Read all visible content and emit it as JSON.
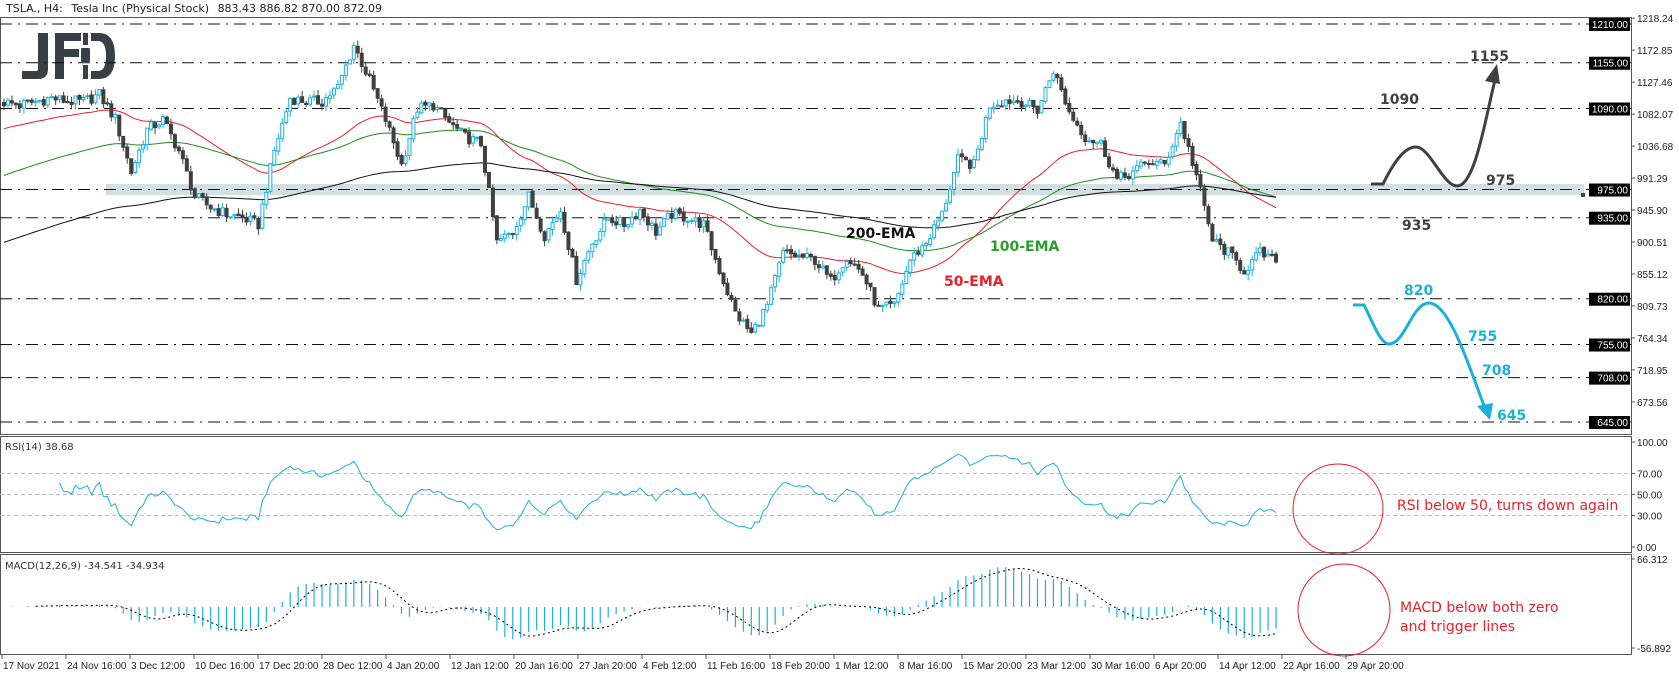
{
  "header": {
    "symbol": "TSLA., H4:",
    "name": "Tesla Inc (Physical Stock)",
    "ohlc": "883.43 886.82 870.00 872.09"
  },
  "logo": "JFD",
  "colors": {
    "bull": "#1ab0dc",
    "bear": "#404040",
    "ema50": "#e8202a",
    "ema100": "#1e8c1e",
    "ema200": "#111111",
    "zone": "#d3e0e3",
    "bullish_scenario": "#404040",
    "bearish_scenario": "#1ab0dc",
    "annotation": "#e8202a"
  },
  "chart_data": [
    {
      "type": "candlestick",
      "title": "TSLA., H4: Tesla Inc (Physical Stock)",
      "x_tick_labels": [
        "17 Nov 2021",
        "24 Nov 16:00",
        "3 Dec 12:00",
        "10 Dec 16:00",
        "17 Dec 20:00",
        "28 Dec 12:00",
        "4 Jan 20:00",
        "12 Jan 12:00",
        "20 Jan 16:00",
        "27 Jan 20:00",
        "4 Feb 12:00",
        "11 Feb 16:00",
        "18 Feb 20:00",
        "1 Mar 12:00",
        "8 Mar 16:00",
        "15 Mar 20:00",
        "23 Mar 12:00",
        "30 Mar 16:00",
        "6 Apr 20:00",
        "14 Apr 12:00",
        "22 Apr 16:00",
        "29 Apr 20:00"
      ],
      "close_samples_every_4_bars": [
        1099,
        1095,
        1100,
        1105,
        1100,
        1100,
        1110,
        1075,
        1000,
        1060,
        1074,
        1030,
        965,
        950,
        940,
        935,
        925,
        1030,
        1105,
        1100,
        1100,
        1120,
        1180,
        1130,
        1074,
        1010,
        1090,
        1095,
        1070,
        1050,
        1040,
        900,
        915,
        965,
        910,
        946,
        847,
        900,
        935,
        925,
        946,
        915,
        940,
        935,
        925,
        860,
        800,
        770,
        810,
        885,
        880,
        875,
        845,
        880,
        855,
        805,
        810,
        875,
        900,
        940,
        1017,
        1010,
        1095,
        1102,
        1100,
        1088,
        1145,
        1085,
        1050,
        1040,
        989,
        1000,
        1015,
        1010,
        1070,
        995,
        903,
        885,
        860,
        885,
        872.09
      ],
      "last_bar": {
        "open": 883.43,
        "high": 886.82,
        "low": 870.0,
        "close": 872.09
      },
      "ylim": [
        645,
        1218.24
      ],
      "y_tick_labels": [
        "1218.24",
        "1172.85",
        "1127.46",
        "1082.07",
        "1036.68",
        "991.29",
        "945.90",
        "900.51",
        "855.12",
        "809.73",
        "764.34",
        "718.95",
        "673.56"
      ],
      "levels": [
        {
          "value": 1210,
          "label": "1210.00"
        },
        {
          "value": 1155,
          "label": "1155.00"
        },
        {
          "value": 1090,
          "label": "1090.00"
        },
        {
          "value": 975,
          "label": "975.00"
        },
        {
          "value": 935,
          "label": "935.00"
        },
        {
          "value": 820,
          "label": "820.00"
        },
        {
          "value": 755,
          "label": "755.00"
        },
        {
          "value": 708,
          "label": "708.00"
        },
        {
          "value": 645,
          "label": "645.00"
        }
      ],
      "support_zone": {
        "from": 967,
        "to": 983
      },
      "emas": [
        {
          "name": "50-EMA",
          "period": 50
        },
        {
          "name": "100-EMA",
          "period": 100
        },
        {
          "name": "200-EMA",
          "period": 200
        }
      ],
      "scenario_labels": {
        "bullish": [
          "1155",
          "1090",
          "975",
          "935"
        ],
        "bearish": [
          "820",
          "755",
          "708",
          "645"
        ]
      },
      "bullish_path": [
        975,
        1030,
        975,
        1155
      ],
      "bearish_path": [
        820,
        755,
        820,
        645
      ]
    },
    {
      "type": "line",
      "title": "RSI(14) 38.68",
      "ylim": [
        0,
        100
      ],
      "levels": [
        70,
        50,
        30
      ],
      "y_tick_labels": [
        "100.00",
        "70.00",
        "50.00",
        "30.00",
        "0.00"
      ],
      "annotation": "RSI below 50, turns down again"
    },
    {
      "type": "bar",
      "title": "MACD(12,26,9) -34.541 -34.934",
      "ylim": [
        -56.892,
        66.312
      ],
      "y_tick_labels": [
        "66.312",
        "-56.892"
      ],
      "annotation_lines": [
        "MACD below both zero",
        "and trigger lines"
      ]
    }
  ]
}
